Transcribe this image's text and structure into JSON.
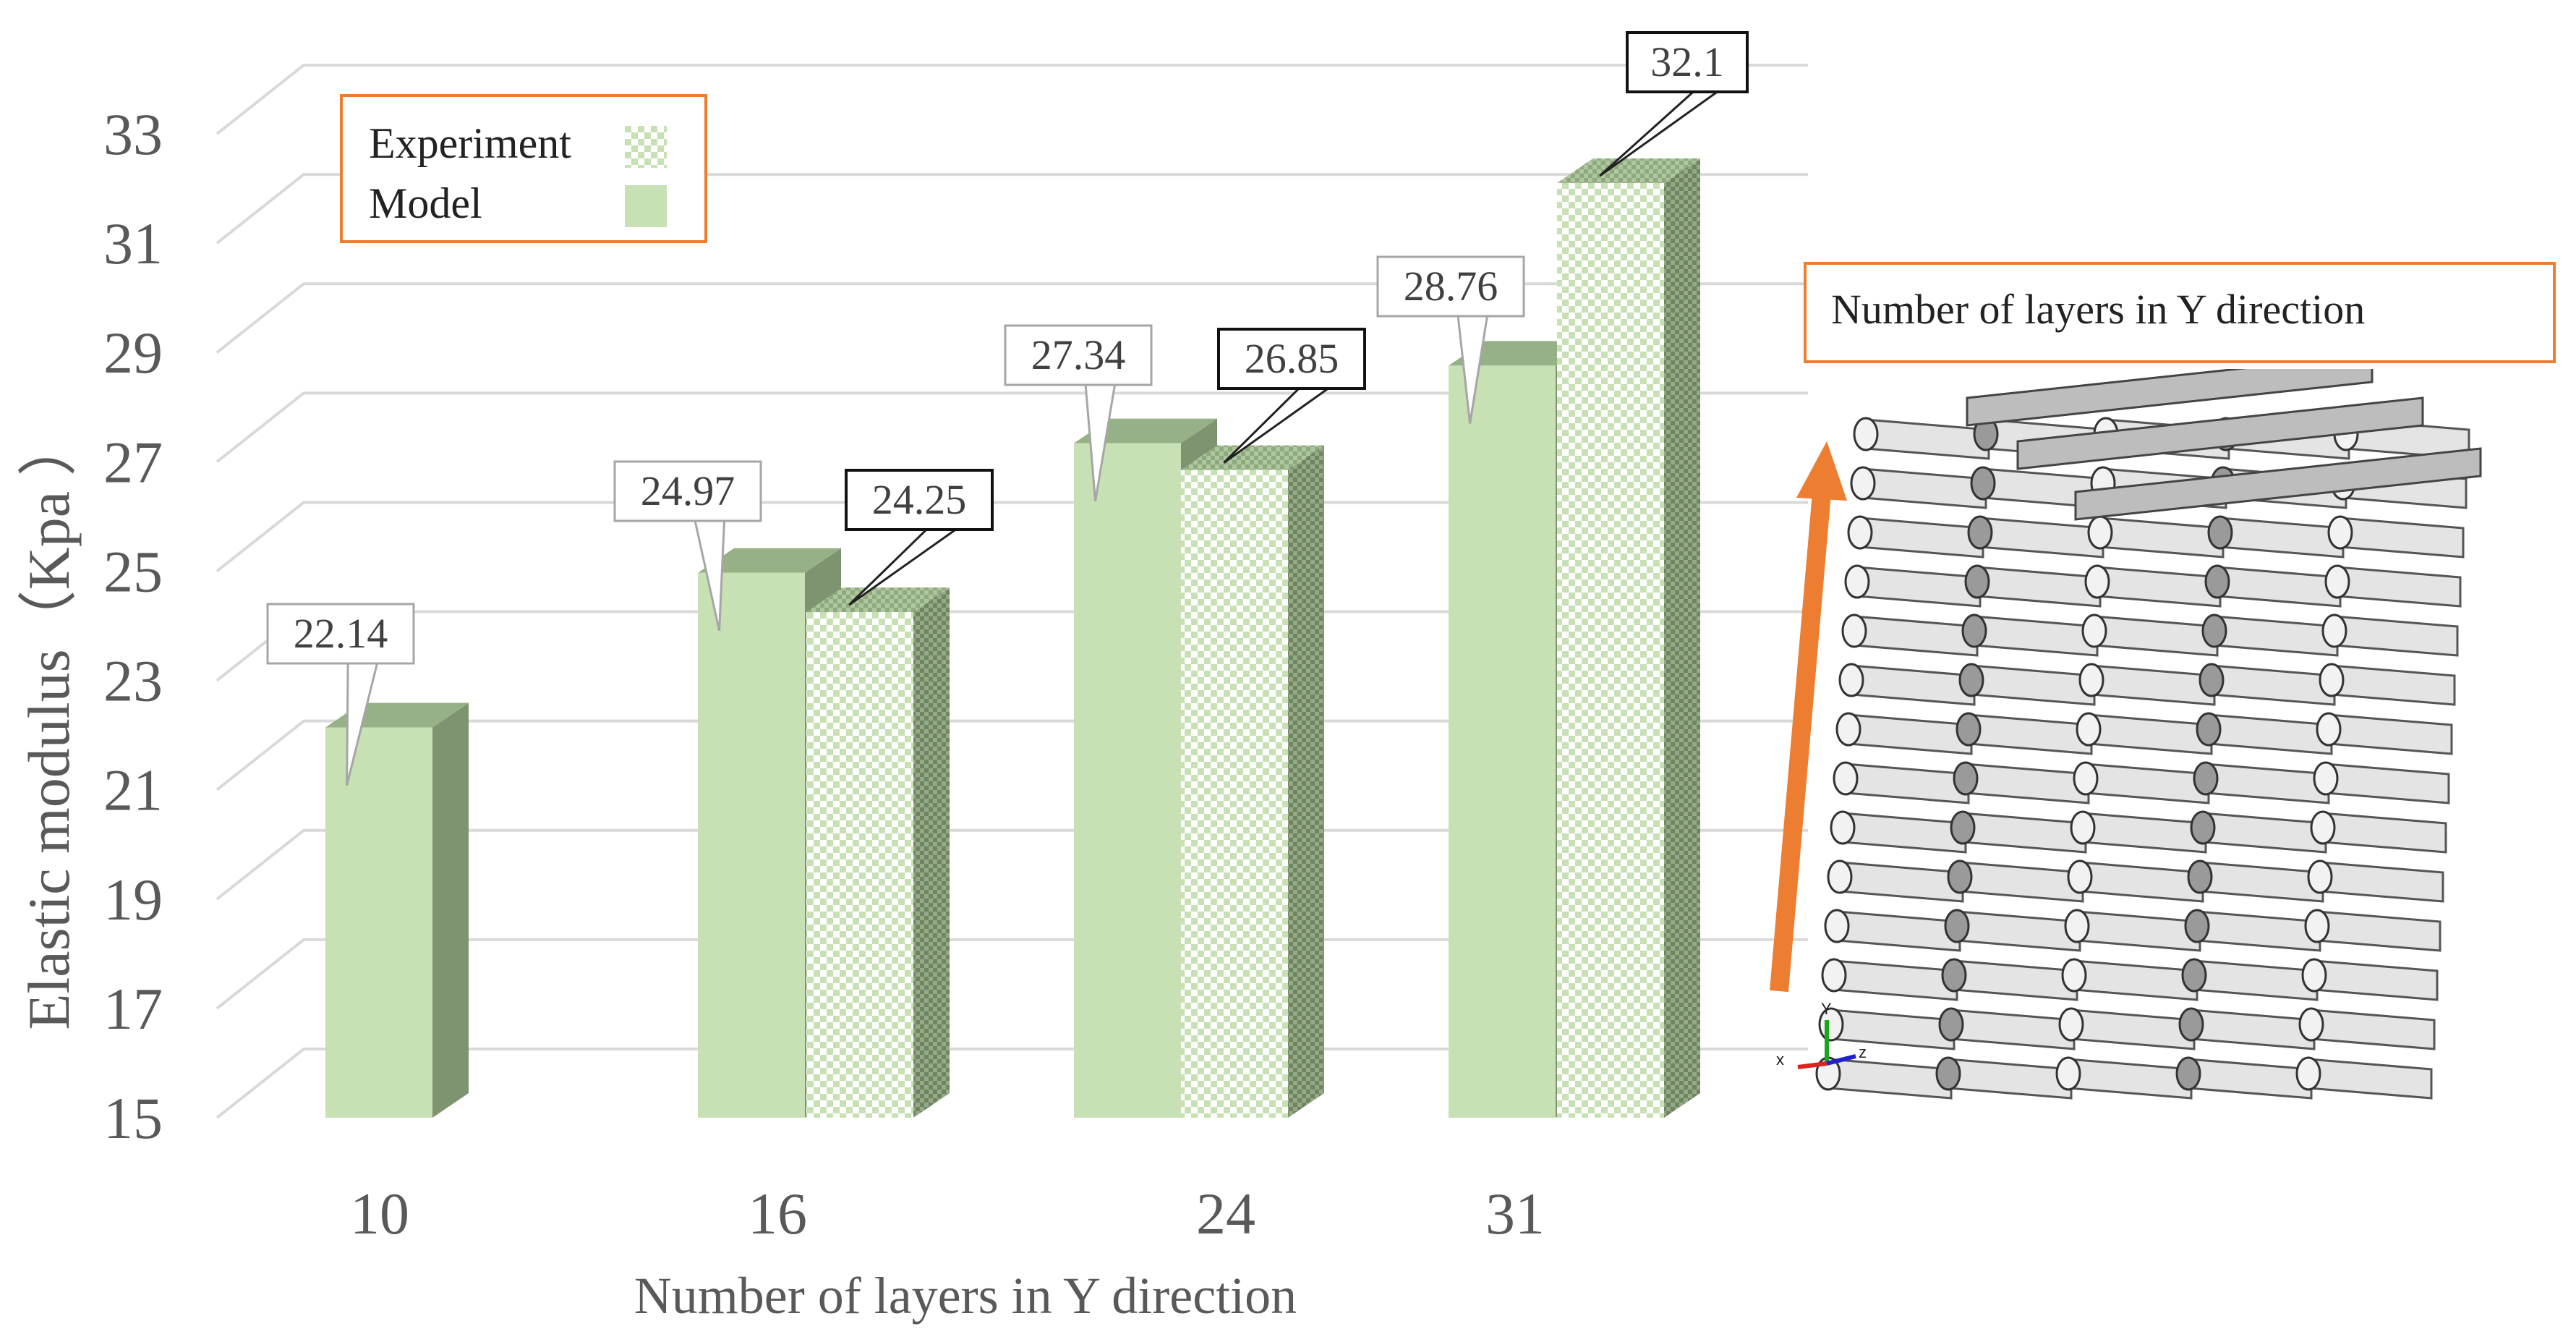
{
  "chart_data": {
    "type": "bar",
    "style": "3d-clustered-column",
    "categories": [
      "10",
      "16",
      "24",
      "31"
    ],
    "series": [
      {
        "name": "Model",
        "values": [
          22.14,
          24.97,
          27.34,
          28.76
        ],
        "fill": "solid",
        "color": "#C7E0B4"
      },
      {
        "name": "Experiment",
        "values": [
          null,
          24.25,
          26.85,
          32.1
        ],
        "fill": "checker",
        "color": "#C7E0B4"
      }
    ],
    "xlabel": "Number of layers  in Y direction",
    "ylabel": "Elastic modulus（Kpa  ）",
    "ylim": [
      15,
      33
    ],
    "yticks": [
      "15",
      "17",
      "19",
      "21",
      "23",
      "25",
      "27",
      "29",
      "31",
      "33"
    ],
    "grid": true,
    "legend_position": "top-left"
  },
  "legend": {
    "experiment_label": "Experiment",
    "model_label": "Model"
  },
  "illustration": {
    "caption": "Number of layers in Y direction",
    "arrow_color": "#ED7D31",
    "axis_labels": {
      "x": "x",
      "y": "Y",
      "z": "z"
    }
  },
  "colors": {
    "bar_front": "#C7E0B4",
    "bar_top": "#97B187",
    "bar_side": "#7E9470",
    "gridline": "#D9D9D9",
    "axis_text": "#595959",
    "accent": "#ED7D31"
  }
}
